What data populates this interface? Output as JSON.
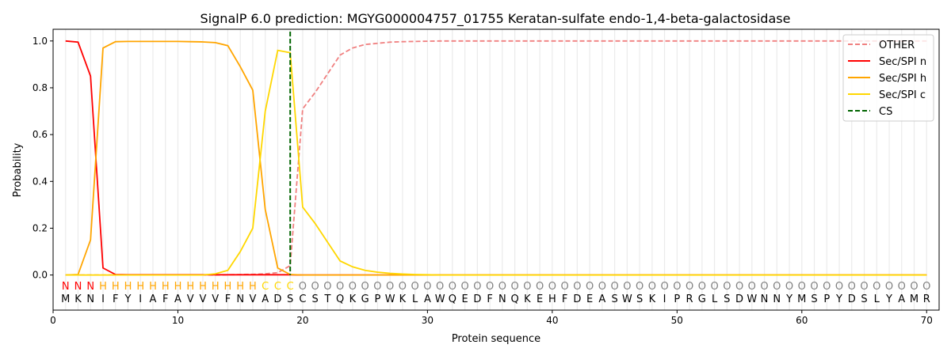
{
  "chart_data": {
    "type": "line",
    "title": "SignalP 6.0 prediction: MGYG000004757_01755 Keratan-sulfate endo-1,4-beta-galactosidase",
    "xlabel": "Protein sequence",
    "ylabel": "Probability",
    "xlim": [
      0,
      71
    ],
    "ylim": [
      -0.15,
      1.05
    ],
    "xticks": [
      0,
      10,
      20,
      30,
      40,
      50,
      60,
      70
    ],
    "yticks": [
      0.0,
      0.2,
      0.4,
      0.6,
      0.8,
      1.0
    ],
    "legend_position": "top-right",
    "sequence": "MKNIFYIAFAVVVFNVADSCSTQKGPWKLAWQEDFNQKEHFDEASWSKIPRGLSDWNNYMSPYDSLYAMR",
    "labels": "NNNHHHHHHHHHHHHHCCCOOOOOOOOOOOOOOOOOOOOOOOOOOOOOOOOOOOOOOOOOOOOOOOOOOO",
    "label_colors": {
      "N": "#ff0000",
      "H": "#ffa500",
      "C": "#ffd700",
      "O": "#808080"
    },
    "cleavage_site": 19,
    "series": [
      {
        "name": "OTHER",
        "color": "#f08080",
        "dash": true,
        "values": [
          0,
          0,
          0,
          0,
          0,
          0,
          0,
          0,
          0,
          0,
          0,
          0,
          0,
          0.001,
          0.002,
          0.003,
          0.005,
          0.01,
          0.04,
          0.71,
          0.78,
          0.86,
          0.94,
          0.97,
          0.985,
          0.99,
          0.995,
          0.997,
          0.998,
          0.999,
          1,
          1,
          1,
          1,
          1,
          1,
          1,
          1,
          1,
          1,
          1,
          1,
          1,
          1,
          1,
          1,
          1,
          1,
          1,
          1,
          1,
          1,
          1,
          1,
          1,
          1,
          1,
          1,
          1,
          1,
          1,
          1,
          1,
          1,
          1,
          1,
          1,
          1,
          1,
          1
        ]
      },
      {
        "name": "Sec/SPI n",
        "color": "#ff0000",
        "dash": false,
        "values": [
          1.0,
          0.995,
          0.85,
          0.03,
          0.002,
          0.001,
          0.001,
          0.001,
          0.001,
          0.001,
          0.001,
          0.001,
          0.001,
          0.001,
          0.001,
          0.001,
          0.001,
          0.001,
          0.001,
          0,
          0,
          0,
          0,
          0,
          0,
          0,
          0,
          0,
          0,
          0,
          0,
          0,
          0,
          0,
          0,
          0,
          0,
          0,
          0,
          0,
          0,
          0,
          0,
          0,
          0,
          0,
          0,
          0,
          0,
          0,
          0,
          0,
          0,
          0,
          0,
          0,
          0,
          0,
          0,
          0,
          0,
          0,
          0,
          0,
          0,
          0,
          0,
          0,
          0,
          0
        ]
      },
      {
        "name": "Sec/SPI h",
        "color": "#ffa500",
        "dash": false,
        "values": [
          0,
          0.002,
          0.15,
          0.97,
          0.997,
          0.998,
          0.998,
          0.998,
          0.998,
          0.998,
          0.997,
          0.996,
          0.993,
          0.98,
          0.89,
          0.79,
          0.28,
          0.03,
          0.002,
          0,
          0,
          0,
          0,
          0,
          0,
          0,
          0,
          0,
          0,
          0,
          0,
          0,
          0,
          0,
          0,
          0,
          0,
          0,
          0,
          0,
          0,
          0,
          0,
          0,
          0,
          0,
          0,
          0,
          0,
          0,
          0,
          0,
          0,
          0,
          0,
          0,
          0,
          0,
          0,
          0,
          0,
          0,
          0,
          0,
          0,
          0,
          0,
          0,
          0,
          0
        ]
      },
      {
        "name": "Sec/SPI c",
        "color": "#ffd700",
        "dash": false,
        "values": [
          0,
          0,
          0,
          0,
          0,
          0,
          0,
          0,
          0,
          0,
          0,
          0,
          0.005,
          0.02,
          0.1,
          0.2,
          0.7,
          0.96,
          0.95,
          0.29,
          0.22,
          0.14,
          0.06,
          0.035,
          0.02,
          0.012,
          0.007,
          0.004,
          0.002,
          0.001,
          0,
          0,
          0,
          0,
          0,
          0,
          0,
          0,
          0,
          0,
          0,
          0,
          0,
          0,
          0,
          0,
          0,
          0,
          0,
          0,
          0,
          0,
          0,
          0,
          0,
          0,
          0,
          0,
          0,
          0,
          0,
          0,
          0,
          0,
          0,
          0,
          0,
          0,
          0,
          0
        ]
      },
      {
        "name": "CS",
        "color": "#006400",
        "dash": true,
        "values": []
      }
    ]
  }
}
